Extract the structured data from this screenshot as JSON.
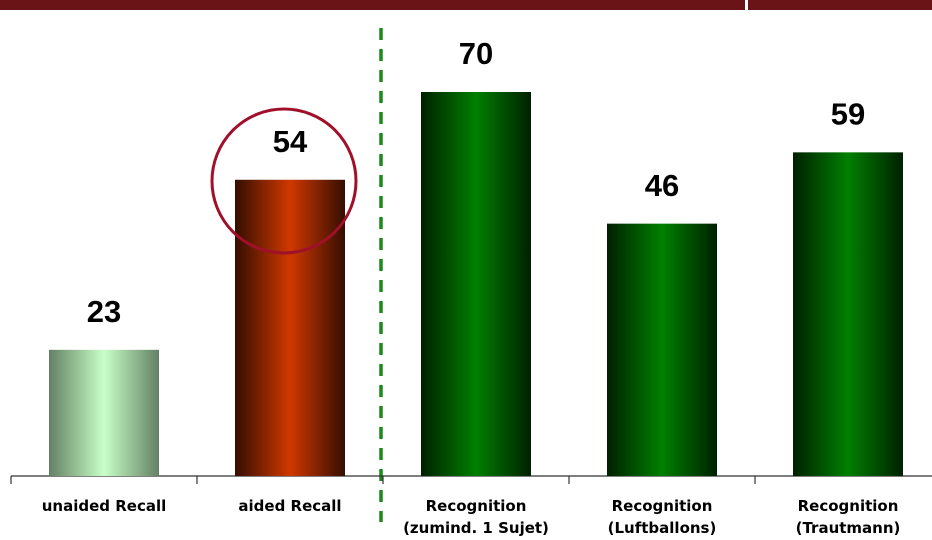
{
  "chart_data": {
    "type": "bar",
    "categories": [
      [
        "unaided Recall"
      ],
      [
        "aided Recall"
      ],
      [
        "Recognition",
        "(zumind. 1 Sujet)"
      ],
      [
        "Recognition",
        "(Luftballons)"
      ],
      [
        "Recognition",
        "(Trautmann)"
      ]
    ],
    "values": [
      23,
      54,
      70,
      46,
      59
    ],
    "colors": [
      "#c8ffc8",
      "#d03800",
      "#008000",
      "#008000",
      "#008000"
    ]
  }
}
